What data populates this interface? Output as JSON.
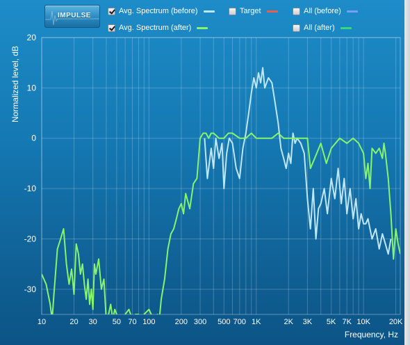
{
  "toolbar": {
    "impulse_label": "IMPULSE"
  },
  "legend": [
    {
      "id": "avg-before",
      "label": "Avg. Spectrum (before)",
      "checked": true,
      "color": "#bfe6f5"
    },
    {
      "id": "target",
      "label": "Target",
      "checked": false,
      "color": "#e8604a"
    },
    {
      "id": "all-before",
      "label": "All (before)",
      "checked": false,
      "color": "#7a9ef5"
    },
    {
      "id": "avg-after",
      "label": "Avg. Spectrum (after)",
      "checked": true,
      "color": "#86f56c"
    },
    {
      "id": "all-after",
      "label": "All (after)",
      "checked": false,
      "color": "#34d97a"
    }
  ],
  "chart_data": {
    "type": "line",
    "xlabel": "Frequency, Hz",
    "ylabel": "Normalized level, dB",
    "xscale": "log",
    "xlim": [
      10,
      22000
    ],
    "ylim": [
      -35,
      20
    ],
    "grid": true,
    "x_ticks": [
      10,
      20,
      30,
      50,
      70,
      100,
      200,
      300,
      500,
      700,
      1000,
      2000,
      3000,
      5000,
      7000,
      10000,
      20000
    ],
    "x_tick_labels": [
      "10",
      "20",
      "30",
      "50",
      "70",
      "100",
      "200",
      "300",
      "500",
      "700",
      "1K",
      "2K",
      "3K",
      "5K",
      "7K",
      "10K",
      "20K"
    ],
    "y_ticks": [
      20,
      10,
      0,
      -10,
      -20,
      -30
    ],
    "y_tick_labels": [
      "20",
      "10",
      "0",
      "-10",
      "-20",
      "-30"
    ],
    "series": [
      {
        "name": "Avg. Spectrum (before)",
        "color": "#bfe6f5",
        "x": [
          330,
          350,
          380,
          400,
          420,
          450,
          480,
          500,
          530,
          560,
          600,
          650,
          700,
          750,
          800,
          850,
          900,
          950,
          1000,
          1050,
          1100,
          1150,
          1200,
          1300,
          1400,
          1500,
          1600,
          1700,
          1800,
          1900,
          2000,
          2100,
          2200,
          2300,
          2400,
          2600,
          2800,
          3000,
          3200,
          3400,
          3600,
          3800,
          4000,
          4300,
          4600,
          5000,
          5400,
          5800,
          6200,
          6600,
          7000,
          7500,
          8000,
          8500,
          9000,
          9500,
          10000,
          10500,
          11000,
          12000,
          13000,
          14000,
          15000,
          16000,
          17000,
          18000
        ],
        "y": [
          0,
          -8,
          -2,
          -6,
          0,
          -4,
          -1,
          -10,
          -3,
          0,
          -1,
          -6,
          -8,
          -2,
          1,
          5,
          9,
          12,
          10,
          13,
          11,
          14,
          10,
          12,
          11,
          7,
          3,
          -2,
          -4,
          -6,
          -3,
          -5,
          1,
          -1,
          0,
          -1,
          -3,
          -12,
          -18,
          -10,
          -20,
          -14,
          -13,
          -10,
          -15,
          -8,
          -12,
          -6,
          -13,
          -8,
          -15,
          -10,
          -16,
          -12,
          -18,
          -15,
          -17,
          -17,
          -16,
          -20,
          -18,
          -22,
          -19,
          -21,
          -23,
          -20
        ]
      },
      {
        "name": "Avg. Spectrum (after)",
        "color": "#86f56c",
        "x": [
          10,
          11,
          12,
          12.5,
          13,
          14,
          15,
          16,
          17,
          18,
          19,
          20,
          21,
          22,
          23,
          24,
          25,
          26,
          27,
          28,
          29,
          30,
          31,
          32,
          34,
          36,
          38,
          40,
          42,
          44,
          46,
          48,
          50,
          55,
          60,
          65,
          70,
          75,
          80,
          85,
          90,
          100,
          110,
          120,
          125,
          130,
          140,
          150,
          160,
          170,
          180,
          190,
          200,
          210,
          220,
          240,
          260,
          280,
          300,
          320,
          340,
          360,
          380,
          400,
          450,
          500,
          550,
          600,
          700,
          800,
          900,
          1000,
          1200,
          1400,
          1600,
          1800,
          2000,
          2500,
          3000,
          3200,
          3500,
          4000,
          4500,
          5000,
          6000,
          7000,
          8000,
          9000,
          10000,
          10500,
          11000,
          11500,
          12000,
          13000,
          14000,
          15000,
          15500,
          16000,
          17000,
          18000,
          19000,
          20000,
          21000,
          22000
        ],
        "y": [
          -27,
          -29,
          -33,
          -36,
          -31,
          -22,
          -20,
          -18,
          -25,
          -29,
          -26,
          -31,
          -21,
          -23,
          -27,
          -25,
          -29,
          -32,
          -28,
          -33,
          -30,
          -34,
          -25,
          -27,
          -24,
          -30,
          -28,
          -36,
          -35,
          -33,
          -36,
          -34,
          -35,
          -37,
          -35,
          -34,
          -36,
          -35,
          -35,
          -36,
          -35,
          -34,
          -36,
          -35,
          -36,
          -32,
          -28,
          -22,
          -19,
          -18,
          -16,
          -14,
          -13,
          -15,
          -11,
          -14,
          -9,
          -8,
          0,
          1,
          1,
          0,
          1,
          1,
          0,
          0,
          1,
          1,
          0,
          0,
          1,
          0,
          0,
          0,
          1,
          0,
          0,
          0,
          0,
          -6,
          -4,
          -1,
          -5,
          -2,
          0,
          -1,
          0,
          -1,
          -3,
          -8,
          -5,
          -10,
          -2,
          -3,
          -2,
          -4,
          -1,
          -3,
          -8,
          -15,
          -24,
          -18,
          -21,
          -23
        ]
      }
    ]
  }
}
